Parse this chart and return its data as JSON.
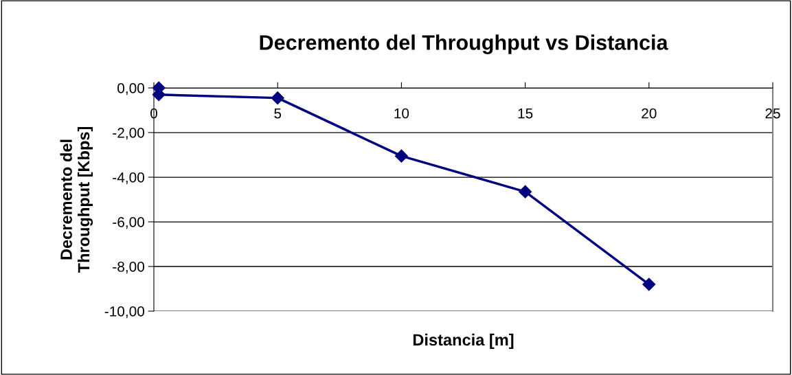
{
  "chart_data": {
    "type": "line",
    "title": "Decremento del Throughput vs Distancia",
    "xlabel": "Distancia [m]",
    "ylabel": "Decremento del\nThroughput [Kbps]",
    "x": [
      0.2,
      0.2,
      5,
      10,
      15,
      20
    ],
    "series": [
      {
        "color": "#000080",
        "values": [
          0.0,
          -0.3,
          -0.45,
          -3.05,
          -4.65,
          -8.8
        ]
      }
    ],
    "xlim": [
      0,
      25
    ],
    "xticks": [
      0,
      5,
      10,
      15,
      20,
      25
    ],
    "ylim": [
      -10,
      0
    ],
    "yticks": [
      {
        "value": 0,
        "label": "0,00"
      },
      {
        "value": -2,
        "label": "-2,00"
      },
      {
        "value": -4,
        "label": "-4,00"
      },
      {
        "value": -6,
        "label": "-6,00"
      },
      {
        "value": -8,
        "label": "-8,00"
      },
      {
        "value": -10,
        "label": "-10,00"
      }
    ],
    "grid": "y",
    "marker": "diamond",
    "line_style": "solid",
    "legend": false
  }
}
